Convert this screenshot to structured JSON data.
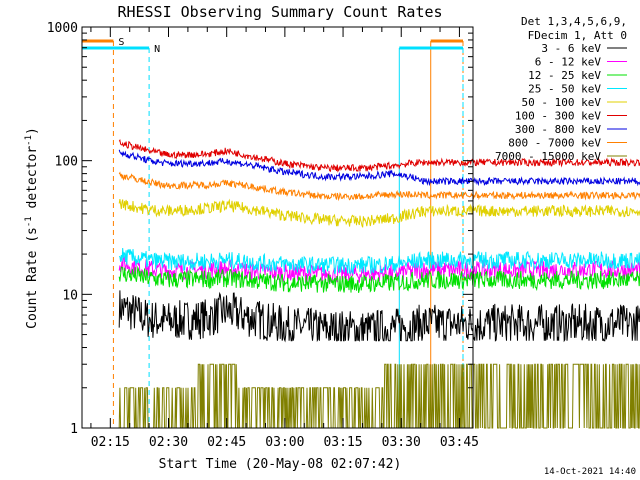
{
  "chart_data": {
    "type": "line",
    "title": "RHESSI Observing Summary Count Rates",
    "xlabel": "Start Time (20-May-08 02:07:42)",
    "ylabel": "Count Rate (s⁻¹ detector⁻¹)",
    "y_scale": "log",
    "ylim": [
      1,
      1000
    ],
    "y_ticks": [
      1,
      10,
      100,
      1000
    ],
    "y_tick_labels": [
      "1",
      "10",
      "100",
      "1000"
    ],
    "xlim_minutes_after_0200": [
      7.7,
      48.5
    ],
    "x_ticks": [
      "02:15",
      "02:30",
      "02:45",
      "03:00",
      "03:15",
      "03:30",
      "03:45"
    ],
    "x_tick_minutes": [
      15,
      30,
      45,
      60,
      75,
      90,
      105
    ],
    "legend_header": [
      "Det 1,3,4,5,6,9,",
      "FDecim 1, Att 0"
    ],
    "legend_placement": "top-right outside",
    "footer_date": "14-Oct-2021 14:40",
    "flags": [
      {
        "label": "S",
        "color": "#ff8000",
        "start": 15.8,
        "end": 97.6
      },
      {
        "label": "N",
        "color": "#00e0ff",
        "start": 25.0,
        "end": 89.5
      }
    ],
    "data_window": {
      "start": 17.3,
      "end": 95.6
    },
    "series": [
      {
        "name": "3 - 6 keV",
        "color": "#000000",
        "x": [
          17.3,
          20,
          25,
          30,
          40,
          45,
          50,
          60,
          70,
          80,
          88,
          93,
          95.6
        ],
        "y": [
          8,
          7.5,
          6.5,
          6.3,
          6.6,
          7.5,
          6.8,
          5.8,
          5.5,
          5.4,
          5.6,
          5.8,
          6.0
        ]
      },
      {
        "name": "6 - 12 keV",
        "color": "#ff00ff",
        "x": [
          17.3,
          20,
          25,
          30,
          40,
          45,
          50,
          60,
          70,
          80,
          88,
          93,
          95.6
        ],
        "y": [
          17,
          16.5,
          15.5,
          15,
          15.2,
          15.5,
          15,
          14.5,
          14.2,
          14.2,
          14.5,
          15,
          15.2
        ]
      },
      {
        "name": "12 - 25 keV",
        "color": "#00e000",
        "x": [
          17.3,
          20,
          25,
          30,
          40,
          45,
          50,
          60,
          70,
          80,
          88,
          93,
          95.6
        ],
        "y": [
          14.5,
          14,
          13.2,
          12.8,
          13,
          13.2,
          12.8,
          12.2,
          12,
          12,
          12.2,
          12.6,
          12.8
        ]
      },
      {
        "name": "25 - 50 keV",
        "color": "#00e8ff",
        "x": [
          17.3,
          20,
          25,
          30,
          40,
          45,
          50,
          60,
          70,
          80,
          88,
          93,
          95.6
        ],
        "y": [
          19.5,
          19,
          18,
          17.5,
          17.7,
          18,
          17.5,
          16.8,
          16.5,
          16.5,
          16.8,
          17.5,
          18
        ]
      },
      {
        "name": "50 - 100 keV",
        "color": "#e0d000",
        "x": [
          17.3,
          20,
          25,
          30,
          40,
          45,
          50,
          60,
          70,
          80,
          88,
          93,
          95.6
        ],
        "y": [
          48,
          46,
          43,
          42,
          44,
          46,
          44,
          39,
          36,
          35,
          37,
          40,
          42
        ]
      },
      {
        "name": "100 - 300 keV",
        "color": "#e00000",
        "x": [
          17.3,
          20,
          25,
          30,
          40,
          45,
          50,
          60,
          70,
          80,
          88,
          93,
          95.6
        ],
        "y": [
          135,
          130,
          118,
          110,
          112,
          118,
          110,
          95,
          88,
          88,
          92,
          96,
          97
        ]
      },
      {
        "name": "300 - 800 keV",
        "color": "#0000e0",
        "x": [
          17.3,
          20,
          25,
          30,
          40,
          45,
          50,
          60,
          70,
          80,
          88,
          93,
          95.6
        ],
        "y": [
          115,
          110,
          100,
          95,
          96,
          99,
          94,
          82,
          76,
          76,
          80,
          75,
          70
        ]
      },
      {
        "name": "800 - 7000 keV",
        "color": "#ff8000",
        "x": [
          17.3,
          20,
          25,
          30,
          40,
          45,
          50,
          60,
          70,
          80,
          88,
          93,
          95.6
        ],
        "y": [
          78,
          75,
          69,
          65,
          66,
          68,
          65,
          58,
          54,
          54,
          56,
          56,
          55
        ]
      },
      {
        "name": "7000 - 15000 keV",
        "color": "#808000",
        "x": [
          17.3,
          20,
          25,
          30,
          40,
          45,
          50,
          60,
          70,
          80,
          88,
          93,
          95.6
        ],
        "y": [
          1.5,
          1.5,
          1.5,
          1.5,
          2.2,
          2.5,
          1.5,
          1.5,
          1.5,
          1.5,
          2.2,
          2.5,
          2.5
        ]
      }
    ]
  }
}
